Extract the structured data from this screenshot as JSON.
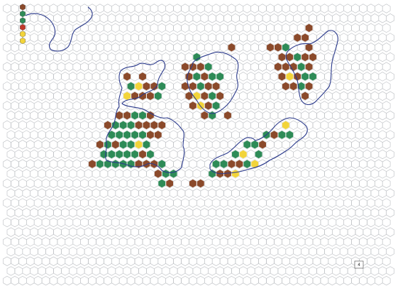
{
  "page_number": "4",
  "colors": {
    "mountain": "#8b4a2b",
    "forest": "#2e8b57",
    "desert": "#f2d43a",
    "grid": "#b9bcc0",
    "coast": "#2b3a8c"
  },
  "legend": {
    "items": [
      {
        "type": "mountain",
        "color": "#8b4a2b"
      },
      {
        "type": "forest",
        "color": "#2e8b57"
      },
      {
        "type": "forest",
        "color": "#2e8b57"
      },
      {
        "type": "special",
        "color": "#c0392b"
      },
      {
        "type": "desert",
        "color": "#f2d43a"
      },
      {
        "type": "desert",
        "color": "#f2d43a"
      }
    ]
  },
  "terrain_groups": [
    {
      "name": "west-island",
      "cells": [
        [
          "m",
          15,
          7
        ],
        [
          "m",
          17,
          7
        ],
        [
          "f",
          16,
          8
        ],
        [
          "d",
          17,
          8
        ],
        [
          "m",
          18,
          8
        ],
        [
          "m",
          19,
          8
        ],
        [
          "f",
          20,
          8
        ],
        [
          "d",
          15,
          9
        ],
        [
          "m",
          16,
          9
        ],
        [
          "m",
          17,
          9
        ],
        [
          "m",
          18,
          9
        ],
        [
          "f",
          19,
          9
        ],
        [
          "m",
          14,
          11
        ],
        [
          "m",
          15,
          11
        ],
        [
          "f",
          16,
          11
        ],
        [
          "f",
          17,
          11
        ],
        [
          "m",
          18,
          11
        ],
        [
          "m",
          13,
          12
        ],
        [
          "f",
          14,
          12
        ],
        [
          "f",
          15,
          12
        ],
        [
          "f",
          16,
          12
        ],
        [
          "m",
          17,
          12
        ],
        [
          "m",
          18,
          12
        ],
        [
          "m",
          19,
          12
        ],
        [
          "m",
          20,
          12
        ],
        [
          "f",
          13,
          13
        ],
        [
          "f",
          14,
          13
        ],
        [
          "f",
          15,
          13
        ],
        [
          "f",
          16,
          13
        ],
        [
          "f",
          17,
          13
        ],
        [
          "m",
          18,
          13
        ],
        [
          "m",
          19,
          13
        ],
        [
          "m",
          12,
          14
        ],
        [
          "f",
          13,
          14
        ],
        [
          "m",
          14,
          14
        ],
        [
          "f",
          15,
          14
        ],
        [
          "f",
          16,
          14
        ],
        [
          "d",
          17,
          14
        ],
        [
          "f",
          18,
          14
        ],
        [
          "f",
          12,
          15
        ],
        [
          "f",
          13,
          15
        ],
        [
          "f",
          14,
          15
        ],
        [
          "f",
          15,
          15
        ],
        [
          "f",
          16,
          15
        ],
        [
          "m",
          17,
          15
        ],
        [
          "f",
          18,
          15
        ],
        [
          "m",
          11,
          16
        ],
        [
          "f",
          12,
          16
        ],
        [
          "f",
          13,
          16
        ],
        [
          "f",
          14,
          16
        ],
        [
          "f",
          15,
          16
        ],
        [
          "f",
          16,
          16
        ],
        [
          "m",
          17,
          16
        ],
        [
          "m",
          18,
          16
        ],
        [
          "m",
          19,
          16
        ],
        [
          "f",
          20,
          16
        ],
        [
          "m",
          19,
          17
        ],
        [
          "f",
          20,
          17
        ],
        [
          "f",
          21,
          17
        ],
        [
          "m",
          21,
          18
        ],
        [
          "f",
          20,
          18
        ]
      ]
    },
    {
      "name": "central-island",
      "cells": [
        [
          "f",
          24,
          5
        ],
        [
          "m",
          23,
          6
        ],
        [
          "m",
          24,
          6
        ],
        [
          "m",
          25,
          6
        ],
        [
          "f",
          26,
          6
        ],
        [
          "m",
          23,
          7
        ],
        [
          "f",
          24,
          7
        ],
        [
          "m",
          25,
          7
        ],
        [
          "f",
          26,
          7
        ],
        [
          "f",
          27,
          7
        ],
        [
          "m",
          23,
          8
        ],
        [
          "m",
          24,
          8
        ],
        [
          "f",
          25,
          8
        ],
        [
          "m",
          26,
          8
        ],
        [
          "m",
          27,
          8
        ],
        [
          "m",
          23,
          9
        ],
        [
          "d",
          24,
          9
        ],
        [
          "m",
          25,
          9
        ],
        [
          "f",
          26,
          9
        ],
        [
          "m",
          27,
          9
        ],
        [
          "m",
          24,
          10
        ],
        [
          "d",
          25,
          10
        ],
        [
          "m",
          26,
          10
        ],
        [
          "f",
          27,
          10
        ],
        [
          "m",
          25,
          11
        ],
        [
          "f",
          26,
          11
        ],
        [
          "m",
          28,
          11
        ],
        [
          "m",
          29,
          4
        ]
      ]
    },
    {
      "name": "south-island",
      "cells": [
        [
          "m",
          24,
          18
        ],
        [
          "m",
          25,
          18
        ],
        [
          "f",
          26,
          17
        ],
        [
          "m",
          27,
          17
        ],
        [
          "m",
          28,
          17
        ],
        [
          "d",
          29,
          17
        ],
        [
          "f",
          27,
          16
        ],
        [
          "f",
          28,
          16
        ],
        [
          "m",
          29,
          16
        ],
        [
          "m",
          30,
          16
        ],
        [
          "f",
          31,
          16
        ],
        [
          "d",
          32,
          16
        ],
        [
          "f",
          32,
          15
        ],
        [
          "f",
          31,
          14
        ],
        [
          "f",
          32,
          14
        ],
        [
          "m",
          33,
          14
        ],
        [
          "f",
          33,
          13
        ],
        [
          "m",
          34,
          13
        ],
        [
          "f",
          35,
          13
        ],
        [
          "f",
          36,
          13
        ],
        [
          "d",
          36,
          12
        ],
        [
          "f",
          29,
          15
        ],
        [
          "d",
          30,
          15
        ]
      ]
    },
    {
      "name": "east-island",
      "cells": [
        [
          "m",
          34,
          4
        ],
        [
          "m",
          35,
          4
        ],
        [
          "f",
          36,
          4
        ],
        [
          "m",
          37,
          3
        ],
        [
          "m",
          38,
          3
        ],
        [
          "m",
          39,
          4
        ],
        [
          "m",
          35,
          5
        ],
        [
          "m",
          36,
          5
        ],
        [
          "f",
          37,
          5
        ],
        [
          "m",
          38,
          5
        ],
        [
          "m",
          39,
          5
        ],
        [
          "m",
          35,
          6
        ],
        [
          "m",
          36,
          6
        ],
        [
          "m",
          37,
          6
        ],
        [
          "f",
          38,
          6
        ],
        [
          "m",
          39,
          6
        ],
        [
          "m",
          35,
          7
        ],
        [
          "d",
          36,
          7
        ],
        [
          "m",
          37,
          7
        ],
        [
          "f",
          38,
          7
        ],
        [
          "f",
          39,
          7
        ],
        [
          "m",
          36,
          8
        ],
        [
          "m",
          37,
          8
        ],
        [
          "f",
          38,
          8
        ],
        [
          "m",
          38,
          9
        ],
        [
          "m",
          39,
          8
        ],
        [
          "m",
          39,
          2
        ]
      ]
    }
  ]
}
